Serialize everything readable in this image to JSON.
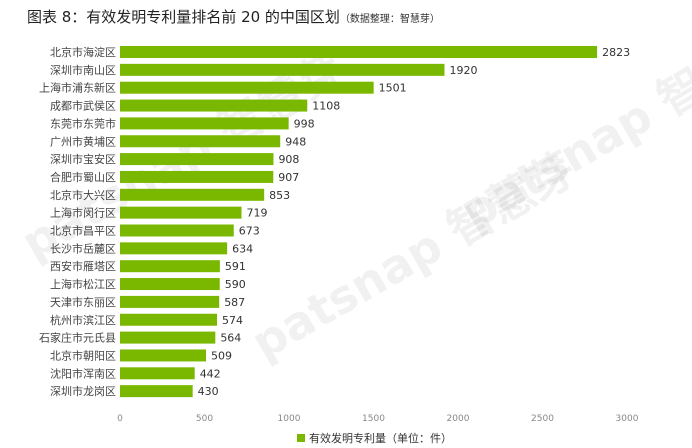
{
  "chart_data": {
    "type": "bar",
    "orientation": "horizontal",
    "title": "图表 8：有效发明专利量排名前 20 的中国区划",
    "source": "（数据整理：智慧芽）",
    "categories": [
      "北京市海淀区",
      "深圳市南山区",
      "上海市浦东新区",
      "成都市武侯区",
      "东莞市东莞市",
      "广州市黄埔区",
      "深圳市宝安区",
      "合肥市蜀山区",
      "北京市大兴区",
      "上海市闵行区",
      "北京市昌平区",
      "长沙市岳麓区",
      "西安市雁塔区",
      "上海市松江区",
      "天津市东丽区",
      "杭州市滨江区",
      "石家庄市元氏县",
      "北京市朝阳区",
      "沈阳市浑南区",
      "深圳市龙岗区"
    ],
    "series": [
      {
        "name": "有效发明专利量（单位：件）",
        "values": [
          2823,
          1920,
          1501,
          1108,
          998,
          948,
          908,
          907,
          853,
          719,
          673,
          634,
          591,
          590,
          587,
          574,
          564,
          509,
          442,
          430
        ],
        "color": "#7ab800"
      }
    ],
    "xlim": [
      0,
      3000
    ],
    "xticks": [
      0,
      500,
      1000,
      1500,
      2000,
      2500,
      3000
    ],
    "grid": false,
    "legend": "bottom-right",
    "data_labels": true
  },
  "watermark": "patsnap 智慧芽"
}
